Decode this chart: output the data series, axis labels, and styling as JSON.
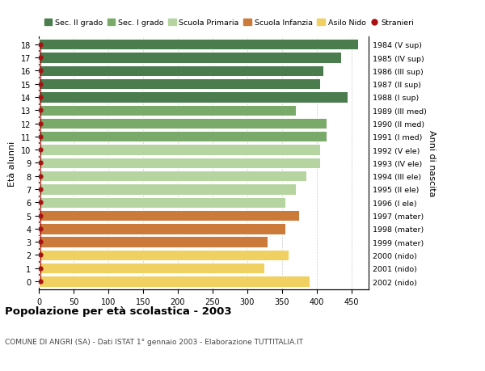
{
  "ages": [
    18,
    17,
    16,
    15,
    14,
    13,
    12,
    11,
    10,
    9,
    8,
    7,
    6,
    5,
    4,
    3,
    2,
    1,
    0
  ],
  "right_labels": [
    "1984 (V sup)",
    "1985 (IV sup)",
    "1986 (III sup)",
    "1987 (II sup)",
    "1988 (I sup)",
    "1989 (III med)",
    "1990 (II med)",
    "1991 (I med)",
    "1992 (V ele)",
    "1993 (IV ele)",
    "1994 (III ele)",
    "1995 (II ele)",
    "1996 (I ele)",
    "1997 (mater)",
    "1998 (mater)",
    "1999 (mater)",
    "2000 (nido)",
    "2001 (nido)",
    "2002 (nido)"
  ],
  "bar_values": [
    460,
    435,
    410,
    405,
    445,
    370,
    415,
    415,
    405,
    405,
    385,
    370,
    355,
    375,
    355,
    330,
    360,
    325,
    390
  ],
  "bar_colors": [
    "#4a7c4e",
    "#4a7c4e",
    "#4a7c4e",
    "#4a7c4e",
    "#4a7c4e",
    "#7aaa6a",
    "#7aaa6a",
    "#7aaa6a",
    "#b5d4a0",
    "#b5d4a0",
    "#b5d4a0",
    "#b5d4a0",
    "#b5d4a0",
    "#cc7a3a",
    "#cc7a3a",
    "#cc7a3a",
    "#f0d060",
    "#f0d060",
    "#f0d060"
  ],
  "stranieri_color": "#aa1111",
  "legend_items": [
    {
      "label": "Sec. II grado",
      "color": "#4a7c4e",
      "type": "patch"
    },
    {
      "label": "Sec. I grado",
      "color": "#7aaa6a",
      "type": "patch"
    },
    {
      "label": "Scuola Primaria",
      "color": "#b5d4a0",
      "type": "patch"
    },
    {
      "label": "Scuola Infanzia",
      "color": "#cc7a3a",
      "type": "patch"
    },
    {
      "label": "Asilo Nido",
      "color": "#f0d060",
      "type": "patch"
    },
    {
      "label": "Stranieri",
      "color": "#aa1111",
      "type": "dot"
    }
  ],
  "ylabel_left": "Età alunni",
  "ylabel_right": "Anni di nascita",
  "xlim": [
    0,
    475
  ],
  "xticks": [
    0,
    50,
    100,
    150,
    200,
    250,
    300,
    350,
    400,
    450
  ],
  "title": "Popolazione per età scolastica - 2003",
  "subtitle": "COMUNE DI ANGRI (SA) - Dati ISTAT 1° gennaio 2003 - Elaborazione TUTTITALIA.IT",
  "bg_color": "#ffffff",
  "bar_height": 0.82,
  "grid_color": "#cccccc"
}
